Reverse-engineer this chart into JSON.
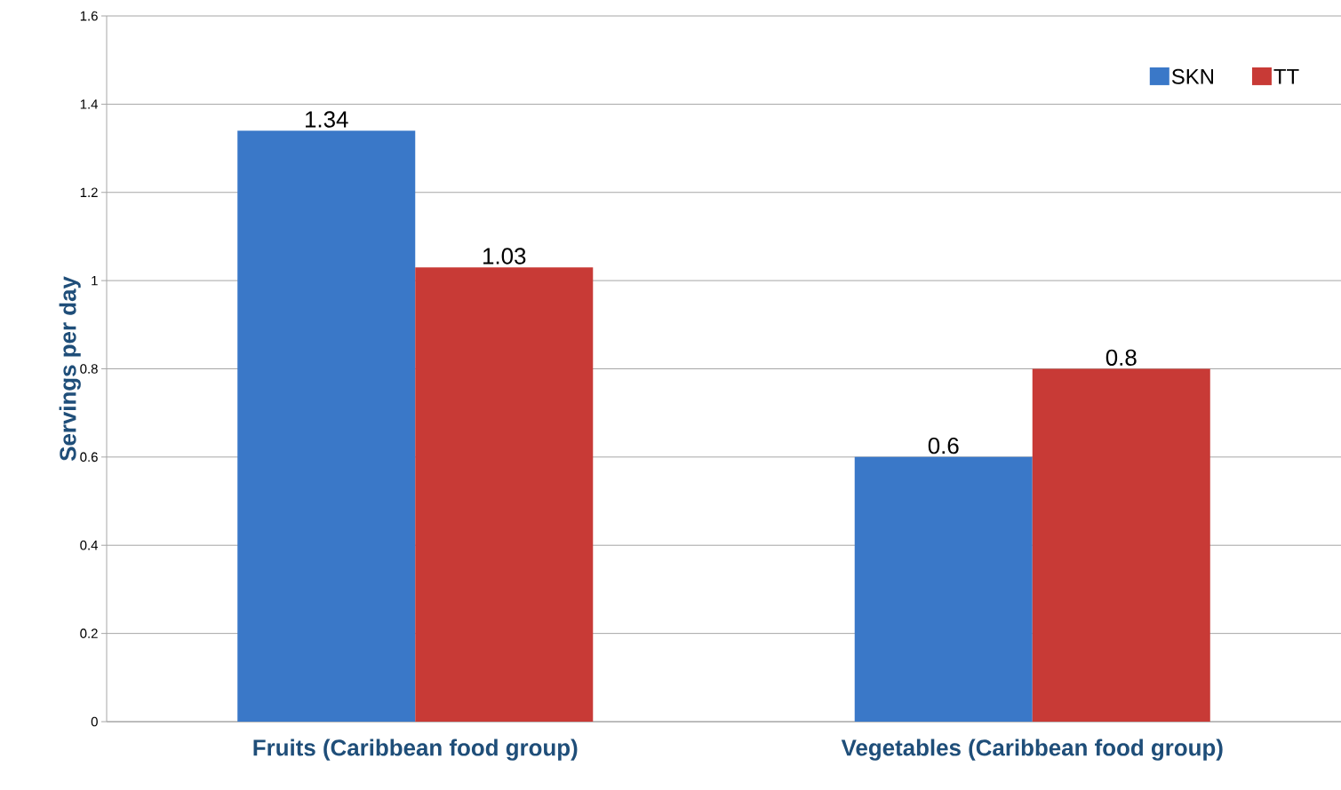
{
  "chart_data": {
    "type": "bar",
    "ylabel": "Servings per day",
    "categories": [
      "Fruits (Caribbean food group)",
      "Vegetables (Caribbean food group)"
    ],
    "series": [
      {
        "name": "SKN",
        "color": "#3a78c8",
        "values": [
          1.34,
          0.6
        ]
      },
      {
        "name": "TT",
        "color": "#c83a36",
        "values": [
          1.03,
          0.8
        ]
      }
    ],
    "ylim": [
      0,
      1.6
    ],
    "yticks": [
      0,
      0.2,
      0.4,
      0.6,
      0.8,
      1,
      1.2,
      1.4,
      1.6
    ],
    "grid": "y",
    "legend": "top right",
    "data_labels": true
  }
}
